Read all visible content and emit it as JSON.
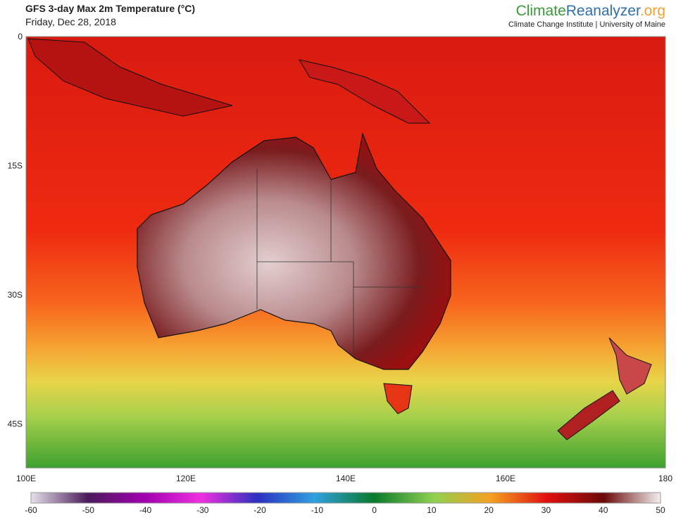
{
  "header": {
    "title": "GFS 3-day Max 2m Temperature (°C)",
    "date": "Friday, Dec 28, 2018",
    "logo": {
      "part1": "Climate",
      "part2": "Reanalyzer",
      "part3": ".org"
    },
    "credit": "Climate Change Institute | University of Maine"
  },
  "map": {
    "lat_labels": [
      "0",
      "15S",
      "30S",
      "45S"
    ],
    "lon_labels": [
      "100E",
      "120E",
      "140E",
      "160E",
      "180"
    ]
  },
  "colorbar": {
    "lim": [
      -60,
      50
    ],
    "ticks": [
      -60,
      -50,
      -40,
      -30,
      -20,
      -10,
      0,
      10,
      20,
      30,
      40,
      50
    ]
  }
}
